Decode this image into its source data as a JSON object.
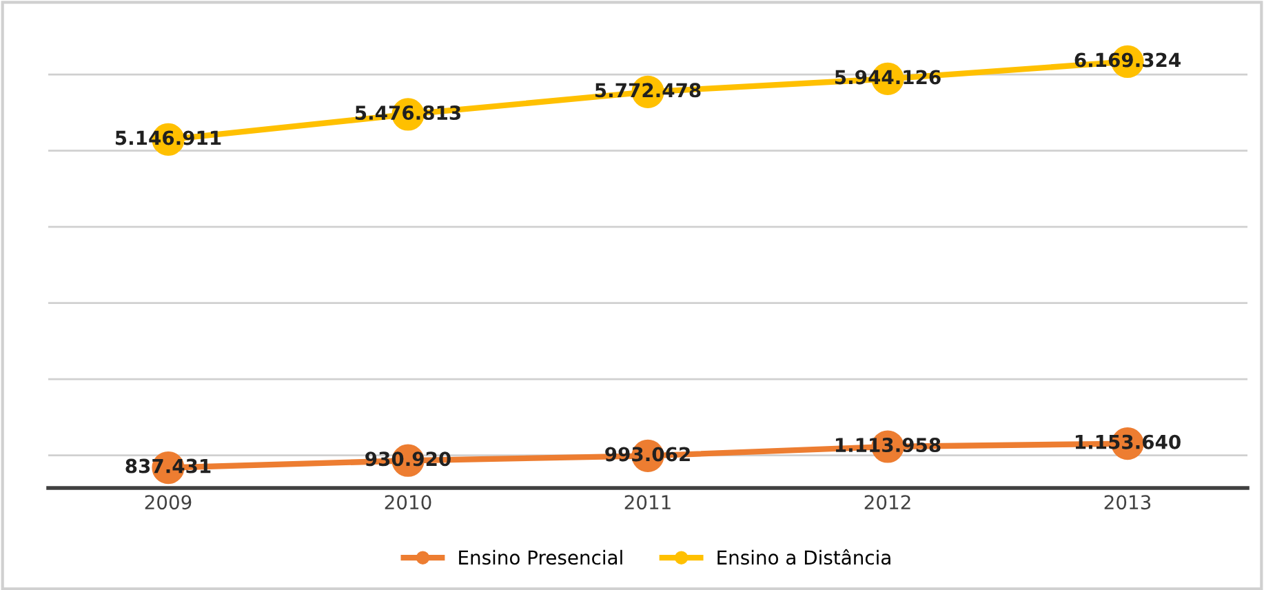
{
  "chart_data": {
    "type": "line",
    "categories": [
      "2009",
      "2010",
      "2011",
      "2012",
      "2013"
    ],
    "series": [
      {
        "name": "Ensino Presencial",
        "color": "#ed7d31",
        "values": [
          837431,
          930920,
          993062,
          1113958,
          1153640
        ],
        "value_labels": [
          "837.431",
          "930.920",
          "993.062",
          "1.113.958",
          "1.153.640"
        ]
      },
      {
        "name": "Ensino a Distância",
        "color": "#ffc000",
        "values": [
          5146911,
          5476813,
          5772478,
          5944126,
          6169324
        ],
        "value_labels": [
          "5.146.911",
          "5.476.813",
          "5.772.478",
          "5.944.126",
          "6.169.324"
        ]
      }
    ],
    "tick_labels": "x",
    "grid": "y",
    "legend": "bottom",
    "marker": "circle",
    "line_style": "solid"
  }
}
